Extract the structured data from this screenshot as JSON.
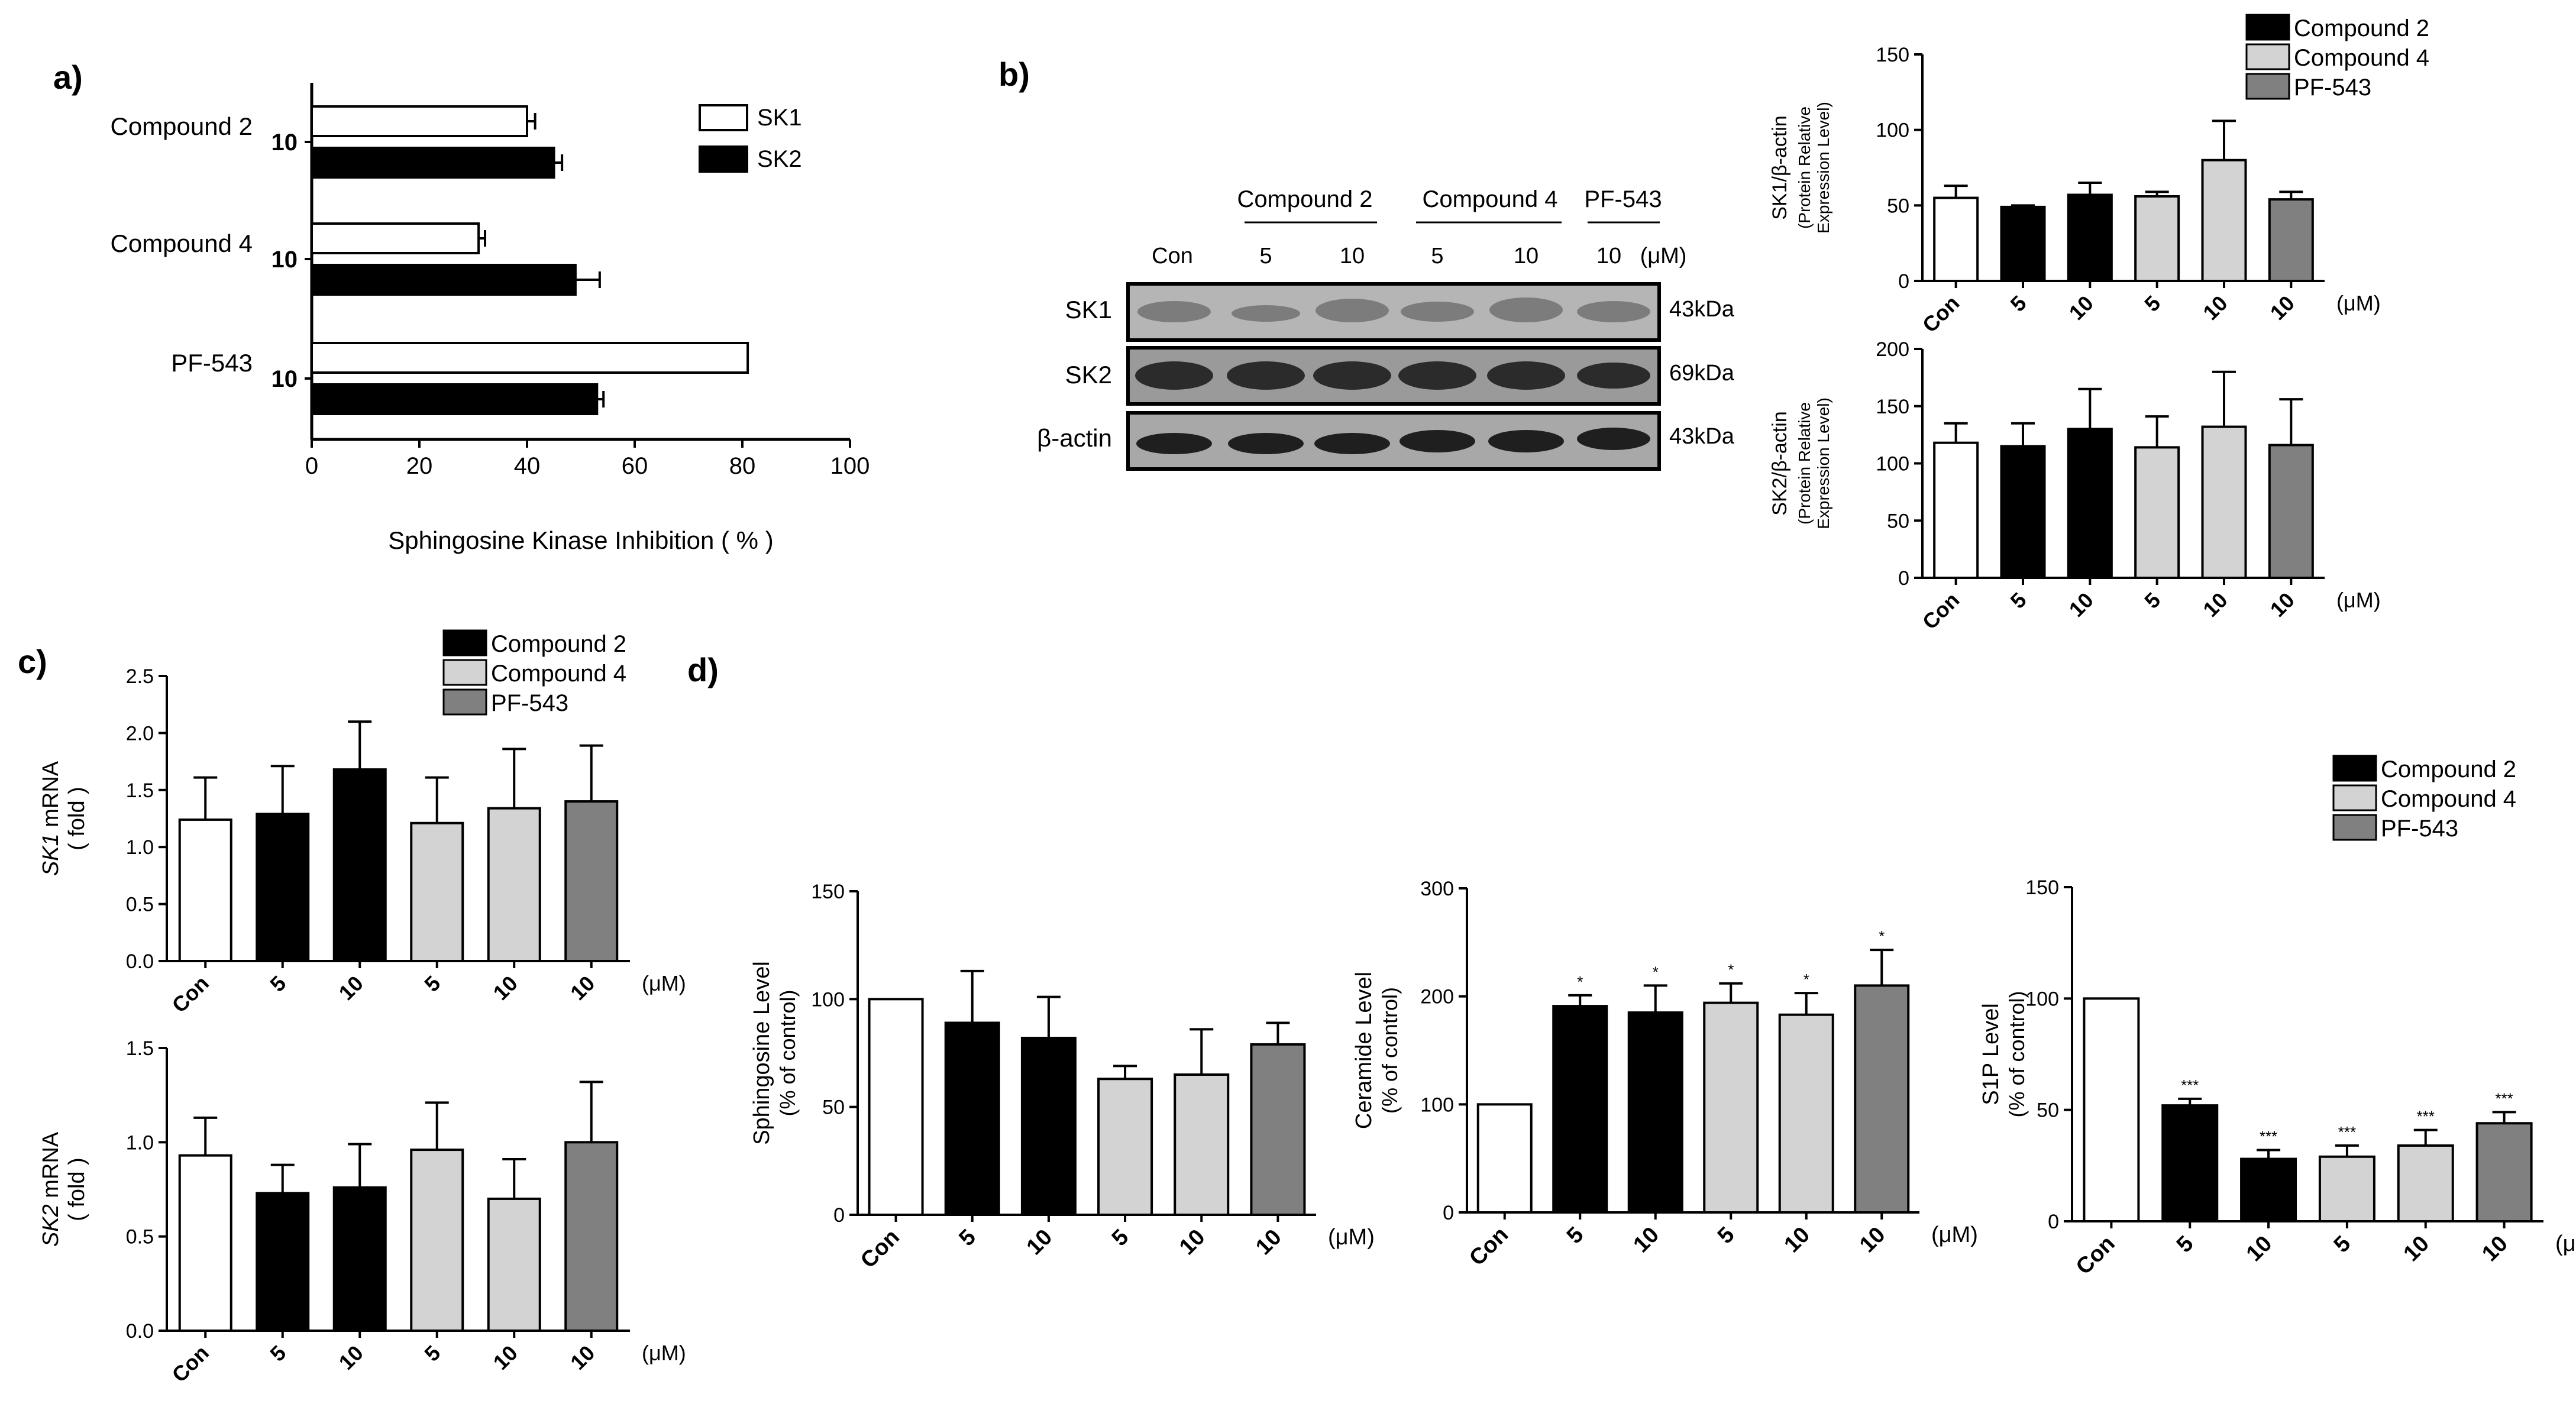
{
  "panel_labels": {
    "a": "a)",
    "b": "b)",
    "c": "c)",
    "d": "d)"
  },
  "colors": {
    "con": "#ffffff",
    "compound2": "#000000",
    "compound4": "#d3d3d3",
    "pf543": "#808080"
  },
  "legend": {
    "compound2": "Compound 2",
    "compound4": "Compound 4",
    "pf543": "PF-543"
  },
  "blot": {
    "groups": [
      "Compound 2",
      "Compound 4",
      "PF-543"
    ],
    "lanes": [
      "Con",
      "5",
      "10",
      "5",
      "10",
      "10",
      "(μM)"
    ],
    "rows": [
      {
        "name": "SK1",
        "kda": "43kDa"
      },
      {
        "name": "SK2",
        "kda": "69kDa"
      },
      {
        "name": "β-actin",
        "kda": "43kDa"
      }
    ]
  },
  "chart_data": [
    {
      "id": "a",
      "type": "bar",
      "orientation": "horizontal",
      "categories": [
        "Compound 2",
        "Compound 4",
        "PF-543"
      ],
      "category_dose": "10",
      "xlabel": "Sphingosine Kinase Inhibition ( % )",
      "xlim": [
        0,
        100
      ],
      "xticks": [
        "0",
        "20",
        "40",
        "60",
        "80",
        "100"
      ],
      "legend": "top-right",
      "series": [
        {
          "name": "SK1",
          "values": [
            40,
            31,
            81
          ],
          "errors": [
            1.5,
            1.2,
            0
          ]
        },
        {
          "name": "SK2",
          "values": [
            45,
            49,
            53
          ],
          "errors": [
            1.5,
            4.5,
            1.2
          ]
        }
      ]
    },
    {
      "id": "b_top",
      "type": "bar",
      "categories": [
        "Con",
        "5",
        "10",
        "5",
        "10",
        "10"
      ],
      "unit": "(μM)",
      "ylabel": "SK1/β-actin",
      "ylabel2": "(Protein Relative",
      "ylabel3": "Expression Level)",
      "ylim": [
        0,
        150
      ],
      "yticks": [
        "0",
        "50",
        "100",
        "150"
      ],
      "values": [
        55,
        49,
        57,
        56,
        80,
        54
      ],
      "errors": [
        8,
        1,
        8,
        3,
        26,
        5
      ],
      "groups": [
        "con",
        "compound2",
        "compound2",
        "compound4",
        "compound4",
        "pf543"
      ],
      "legend": "top-left"
    },
    {
      "id": "b_bottom",
      "type": "bar",
      "categories": [
        "Con",
        "5",
        "10",
        "5",
        "10",
        "10"
      ],
      "unit": "(μM)",
      "ylabel": "SK2/β-actin",
      "ylabel2": "(Protein Relative",
      "ylabel3": "Expression Level)",
      "ylim": [
        0,
        200
      ],
      "yticks": [
        "0",
        "50",
        "100",
        "150",
        "200"
      ],
      "values": [
        118,
        115,
        130,
        114,
        132,
        116
      ],
      "errors": [
        17,
        20,
        35,
        27,
        48,
        40
      ],
      "groups": [
        "con",
        "compound2",
        "compound2",
        "compound4",
        "compound4",
        "pf543"
      ]
    },
    {
      "id": "c_top",
      "type": "bar",
      "categories": [
        "Con",
        "5",
        "10",
        "5",
        "10",
        "10"
      ],
      "unit": "(μM)",
      "ylabel_italic": "SK1",
      "ylabel": " mRNA",
      "ylabel2": "( fold )",
      "ylim": [
        0,
        2.5
      ],
      "yticks": [
        "0.0",
        "0.5",
        "1.0",
        "1.5",
        "2.0",
        "2.5"
      ],
      "values": [
        1.24,
        1.29,
        1.68,
        1.21,
        1.34,
        1.4
      ],
      "errors": [
        0.37,
        0.42,
        0.42,
        0.4,
        0.52,
        0.49
      ],
      "groups": [
        "con",
        "compound2",
        "compound2",
        "compound4",
        "compound4",
        "pf543"
      ],
      "legend": "top-right"
    },
    {
      "id": "c_bottom",
      "type": "bar",
      "categories": [
        "Con",
        "5",
        "10",
        "5",
        "10",
        "10"
      ],
      "unit": "(μM)",
      "ylabel_italic": "SK2",
      "ylabel": " mRNA",
      "ylabel2": "( fold )",
      "ylim": [
        0,
        1.5
      ],
      "yticks": [
        "0.0",
        "0.5",
        "1.0",
        "1.5"
      ],
      "values": [
        0.93,
        0.73,
        0.76,
        0.96,
        0.7,
        1.0
      ],
      "errors": [
        0.2,
        0.15,
        0.23,
        0.25,
        0.21,
        0.32
      ],
      "groups": [
        "con",
        "compound2",
        "compound2",
        "compound4",
        "compound4",
        "pf543"
      ]
    },
    {
      "id": "d1",
      "type": "bar",
      "categories": [
        "Con",
        "5",
        "10",
        "5",
        "10",
        "10"
      ],
      "unit": "(μM)",
      "ylabel": "Sphingosine Level",
      "ylabel2": "(% of control)",
      "ylim": [
        0,
        150
      ],
      "yticks": [
        "0",
        "50",
        "100",
        "150"
      ],
      "values": [
        100,
        89,
        82,
        63,
        65,
        79
      ],
      "errors": [
        0,
        24,
        19,
        6,
        21,
        10
      ],
      "groups": [
        "con",
        "compound2",
        "compound2",
        "compound4",
        "compound4",
        "pf543"
      ]
    },
    {
      "id": "d2",
      "type": "bar",
      "categories": [
        "Con",
        "5",
        "10",
        "5",
        "10",
        "10"
      ],
      "unit": "(μM)",
      "ylabel": "Ceramide Level",
      "ylabel2": "(% of control)",
      "ylim": [
        0,
        300
      ],
      "yticks": [
        "0",
        "100",
        "200",
        "300"
      ],
      "values": [
        100,
        191,
        185,
        194,
        183,
        210
      ],
      "errors": [
        0,
        10,
        25,
        18,
        20,
        33
      ],
      "significance": [
        "",
        "*",
        "*",
        "*",
        "*",
        "*"
      ],
      "groups": [
        "con",
        "compound2",
        "compound2",
        "compound4",
        "compound4",
        "pf543"
      ]
    },
    {
      "id": "d3",
      "type": "bar",
      "categories": [
        "Con",
        "5",
        "10",
        "5",
        "10",
        "10"
      ],
      "unit": "(μM)",
      "ylabel": "S1P Level",
      "ylabel2": "(% of control)",
      "ylim": [
        0,
        150
      ],
      "yticks": [
        "0",
        "50",
        "100",
        "150"
      ],
      "values": [
        100,
        52,
        28,
        29,
        34,
        44
      ],
      "errors": [
        0,
        3,
        4,
        5,
        7,
        5
      ],
      "significance": [
        "",
        "***",
        "***",
        "***",
        "***",
        "***"
      ],
      "groups": [
        "con",
        "compound2",
        "compound2",
        "compound4",
        "compound4",
        "pf543"
      ],
      "legend": "top-right"
    }
  ]
}
